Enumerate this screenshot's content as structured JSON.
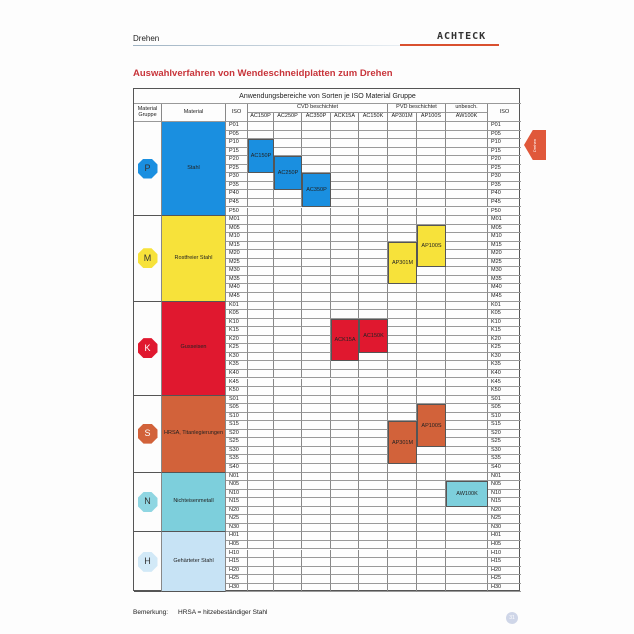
{
  "header": {
    "section": "Drehen",
    "brand": "ACHTECK",
    "accent": "#d9502f"
  },
  "title": "Auswahlverfahren von Wendeschneidplatten zum Drehen",
  "table": {
    "caption": "Anwendungsbereiche von Sorten je ISO Material Gruppe",
    "col_material_group": "Material Gruppe",
    "col_material": "Material",
    "col_iso": "ISO",
    "col_groups": [
      {
        "label": "CVD beschichtet",
        "grades": [
          "AC150P",
          "AC250P",
          "AC350P",
          "ACK15A",
          "AC150K"
        ]
      },
      {
        "label": "PVD  beschichtet",
        "grades": [
          "AP301M",
          "AP100S"
        ]
      },
      {
        "label": "unbesch.",
        "grades": [
          "AW100K"
        ]
      }
    ],
    "groups": [
      {
        "letter": "P",
        "symbol": "P",
        "material": "Stahl",
        "color": "#1a8fe0",
        "icon_color": "#1a8fe0",
        "iso": [
          "P01",
          "P05",
          "P10",
          "P15",
          "P20",
          "P25",
          "P30",
          "P35",
          "P40",
          "P45",
          "P50"
        ]
      },
      {
        "letter": "M",
        "symbol": "M",
        "material": "Rostfreier Stahl",
        "color": "#f7e23a",
        "icon_color": "#f7e23a",
        "iso": [
          "M01",
          "M05",
          "M10",
          "M15",
          "M20",
          "M25",
          "M30",
          "M35",
          "M40",
          "M45"
        ]
      },
      {
        "letter": "K",
        "symbol": "K",
        "material": "Gusseisen",
        "color": "#e0182f",
        "icon_color": "#e0182f",
        "iso": [
          "K01",
          "K05",
          "K10",
          "K15",
          "K20",
          "K25",
          "K30",
          "K35",
          "K40",
          "K45",
          "K50"
        ]
      },
      {
        "letter": "S",
        "symbol": "S",
        "material": "HRSA, Titanlegierungen",
        "color": "#d2623a",
        "icon_color": "#d2623a",
        "iso": [
          "S01",
          "S05",
          "S10",
          "S15",
          "S20",
          "S25",
          "S30",
          "S35",
          "S40"
        ]
      },
      {
        "letter": "N",
        "symbol": "N",
        "material": "Nichteisenmetall",
        "color": "#7dcfdc",
        "icon_color": "#8fd6e2",
        "iso": [
          "N01",
          "N05",
          "N10",
          "N15",
          "N20",
          "N25",
          "N30"
        ]
      },
      {
        "letter": "H",
        "symbol": "H",
        "material": "Gehärteter Stahl",
        "color": "#c7e3f5",
        "icon_color": "#d2e9f7",
        "iso": [
          "H01",
          "H05",
          "H10",
          "H15",
          "H20",
          "H25",
          "H30"
        ]
      }
    ],
    "ranges": [
      {
        "grade": "AC150P",
        "from": "P10",
        "to": "P25",
        "color": "#1a8fe0"
      },
      {
        "grade": "AC250P",
        "from": "P20",
        "to": "P35",
        "color": "#1a8fe0"
      },
      {
        "grade": "AC350P",
        "from": "P30",
        "to": "P45",
        "color": "#1a8fe0"
      },
      {
        "grade": "AP301M",
        "from": "M15",
        "to": "M35",
        "color": "#f7e23a"
      },
      {
        "grade": "AP100S",
        "from": "M05",
        "to": "M25",
        "color": "#f7e23a"
      },
      {
        "grade": "ACK15A",
        "from": "K10",
        "to": "K30",
        "color": "#e0182f"
      },
      {
        "grade": "AC150K",
        "from": "K10",
        "to": "K25",
        "color": "#e0182f"
      },
      {
        "grade": "AP301M",
        "from": "S15",
        "to": "S35",
        "color": "#d2623a"
      },
      {
        "grade": "AP100S",
        "from": "S05",
        "to": "S25",
        "color": "#d2623a"
      },
      {
        "grade": "AW100K",
        "from": "N05",
        "to": "N15",
        "color": "#7dcfdc"
      }
    ]
  },
  "side_tab": {
    "label": "Drehen"
  },
  "footer": {
    "note_label": "Bemerkung:",
    "note_text": "HRSA = hitzebeständiger Stahl",
    "page": "31"
  }
}
